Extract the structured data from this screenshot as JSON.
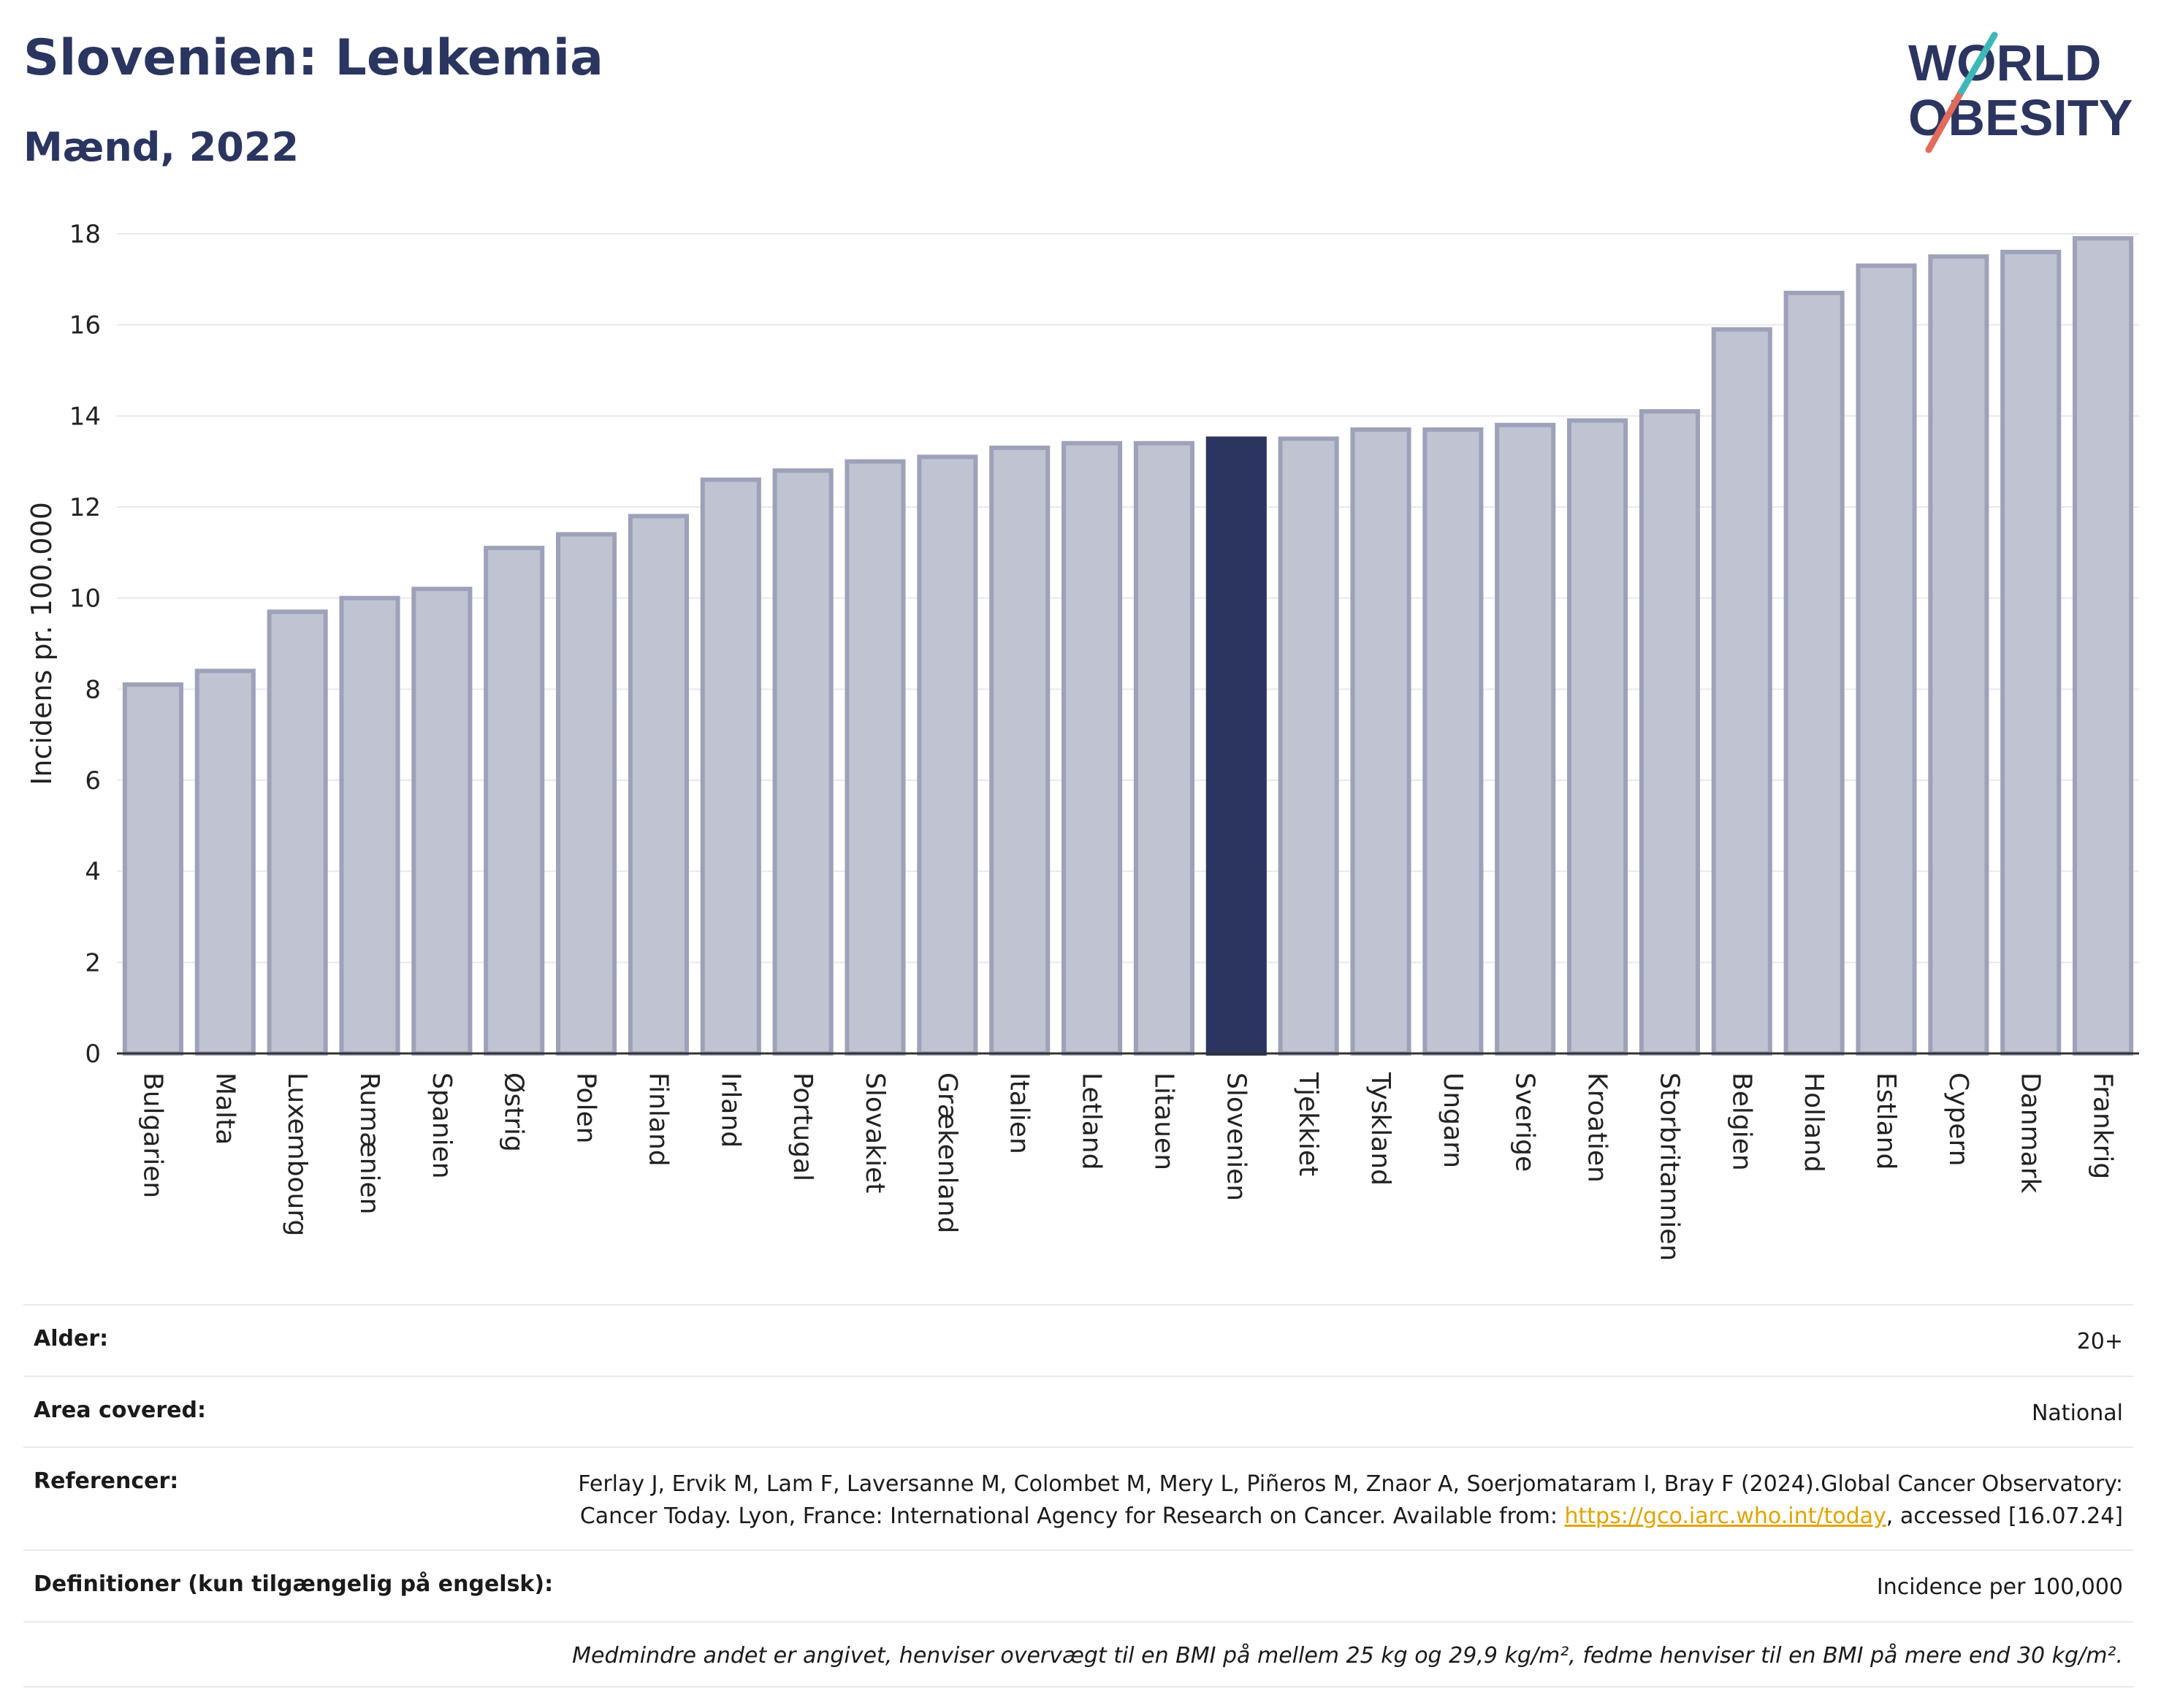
{
  "header": {
    "title": "Slovenien: Leukemia",
    "subtitle": "Mænd, 2022"
  },
  "logo": {
    "line1": "WORLD",
    "line2": "OBESITY"
  },
  "chart_data": {
    "type": "bar",
    "ylabel": "Incidens pr. 100.000",
    "ylim": [
      0,
      18
    ],
    "yticks": [
      0,
      2,
      4,
      6,
      8,
      10,
      12,
      14,
      16,
      18
    ],
    "grid": true,
    "categories": [
      "Bulgarien",
      "Malta",
      "Luxembourg",
      "Rumænien",
      "Spanien",
      "Østrig",
      "Polen",
      "Finland",
      "Irland",
      "Portugal",
      "Slovakiet",
      "Grækenland",
      "Italien",
      "Letland",
      "Litauen",
      "Slovenien",
      "Tjekkiet",
      "Tyskland",
      "Ungarn",
      "Sverige",
      "Kroatien",
      "Storbritannien",
      "Belgien",
      "Holland",
      "Estland",
      "Cypern",
      "Danmark",
      "Frankrig"
    ],
    "values": [
      8.1,
      8.4,
      9.7,
      10.0,
      10.2,
      11.1,
      11.4,
      11.8,
      12.6,
      12.8,
      13.0,
      13.1,
      13.3,
      13.4,
      13.4,
      13.5,
      13.5,
      13.7,
      13.7,
      13.8,
      13.9,
      14.1,
      15.9,
      16.7,
      17.3,
      17.5,
      17.6,
      17.9
    ],
    "highlight": "Slovenien",
    "colors": {
      "bar": "#c0c3d1",
      "bar_border": "#9da2b9",
      "highlight": "#2b3560",
      "axis": "#333333",
      "grid": "#e6e9ef"
    }
  },
  "info": {
    "age_label": "Alder:",
    "age_value": "20+",
    "area_label": "Area covered:",
    "area_value": "National",
    "ref_label": "Referencer:",
    "ref_text1": "Ferlay J, Ervik M, Lam F, Laversanne M, Colombet M, Mery L, Piñeros M, Znaor A, Soerjomataram I, Bray F (2024).Global Cancer Observatory: Cancer Today. Lyon, France: International Agency for Research on Cancer. Available from: ",
    "ref_link": "https://gco.iarc.who.int/today",
    "ref_text2": ", accessed [16.07.24]",
    "def_label": "Definitioner (kun tilgængelig på engelsk):",
    "def_value": "Incidence per 100,000",
    "note": "Medmindre andet er angivet, henviser overvægt til en BMI på mellem 25 kg og 29,9 kg/m², fedme henviser til en BMI på mere end 30 kg/m²."
  }
}
